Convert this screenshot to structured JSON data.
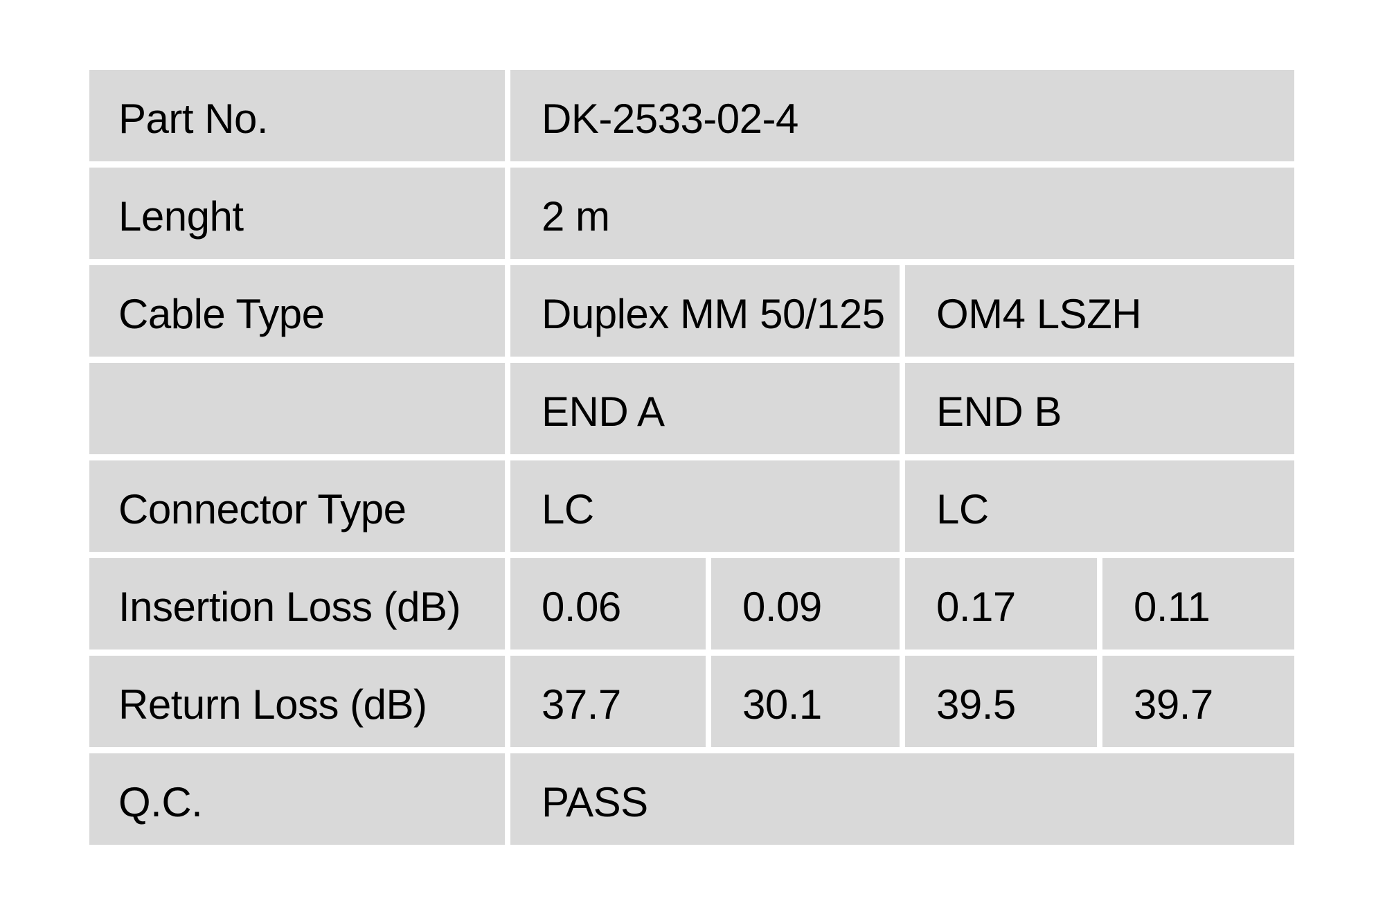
{
  "page": {
    "background_color": "#ffffff",
    "cell_background_color": "#d9d9d9",
    "text_color": "#000000"
  },
  "table": {
    "rows": [
      {
        "label": "Part No.",
        "values": [
          "DK-2533-02-4"
        ]
      },
      {
        "label": "Lenght",
        "values": [
          "2 m"
        ]
      },
      {
        "label": "Cable Type",
        "values": [
          "Duplex MM 50/125",
          "OM4 LSZH"
        ]
      },
      {
        "label": "",
        "values": [
          "END A",
          "END B"
        ]
      },
      {
        "label": "Connector Type",
        "values": [
          "LC",
          "LC"
        ]
      },
      {
        "label": "Insertion Loss (dB)",
        "values": [
          "0.06",
          "0.09",
          "0.17",
          "0.11"
        ]
      },
      {
        "label": "Return Loss (dB)",
        "values": [
          "37.7",
          "30.1",
          "39.5",
          "39.7"
        ]
      },
      {
        "label": "Q.C.",
        "values": [
          "PASS"
        ]
      }
    ]
  }
}
